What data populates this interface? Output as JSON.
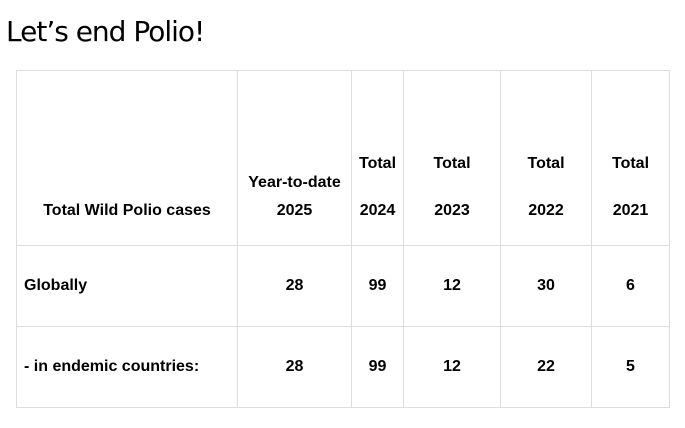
{
  "page": {
    "title": "Let’s end Polio!"
  },
  "table": {
    "corner_label": "Total Wild Polio cases",
    "columns": [
      {
        "top": "Year-to-date",
        "bottom": "2025"
      },
      {
        "top": "Total",
        "bottom": "2024"
      },
      {
        "top": "Total",
        "bottom": "2023"
      },
      {
        "top": "Total",
        "bottom": "2022"
      },
      {
        "top": "Total",
        "bottom": "2021"
      }
    ],
    "rows": [
      {
        "label": "Globally",
        "values": [
          "28",
          "99",
          "12",
          "30",
          "6"
        ]
      },
      {
        "label": "- in endemic countries:",
        "values": [
          "28",
          "99",
          "12",
          "22",
          "5"
        ]
      }
    ]
  }
}
